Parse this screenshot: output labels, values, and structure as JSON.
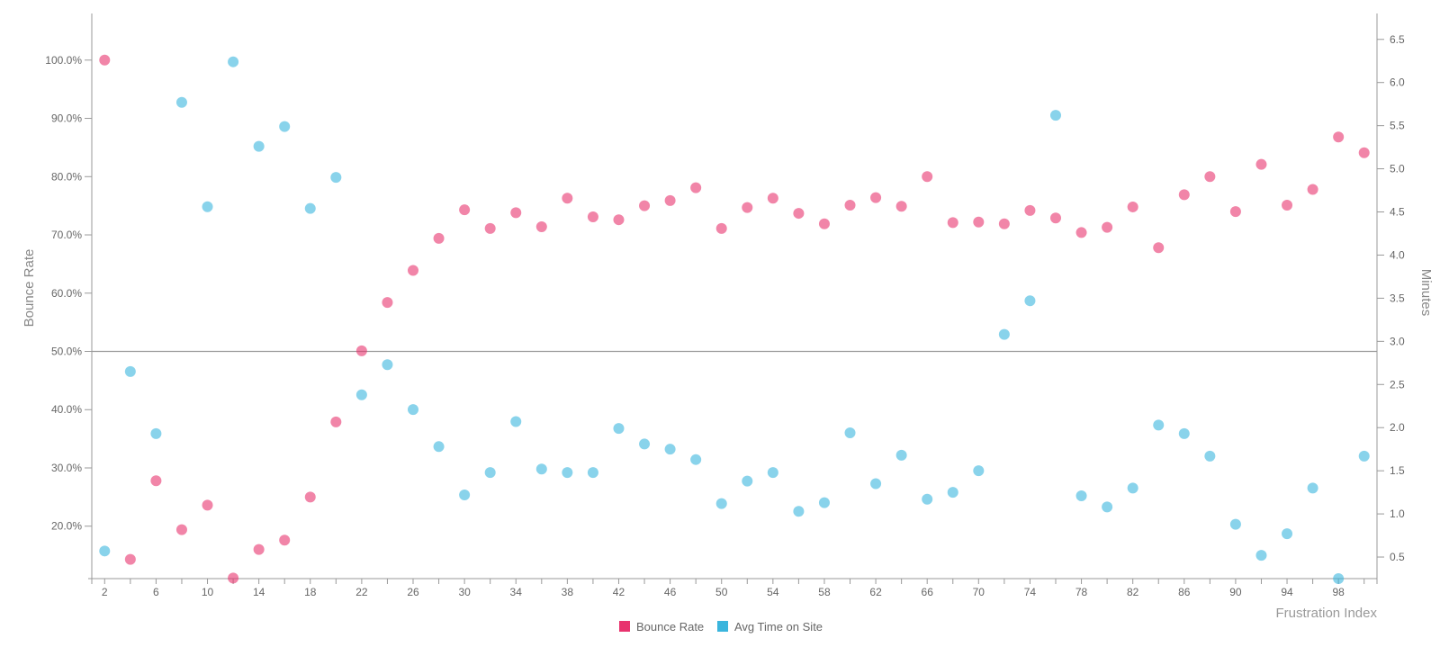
{
  "chart_data": {
    "type": "scatter",
    "xlabel": "Frustration Index",
    "y_left_label": "Bounce Rate",
    "y_right_label": "Minutes",
    "x_ticks": [
      2,
      6,
      10,
      14,
      18,
      22,
      26,
      30,
      34,
      38,
      42,
      46,
      50,
      54,
      58,
      62,
      66,
      70,
      74,
      78,
      82,
      86,
      90,
      94,
      98
    ],
    "x_range": [
      1,
      101
    ],
    "y_left_range": [
      11,
      108
    ],
    "y_left_ticks": [
      20,
      30,
      40,
      50,
      60,
      70,
      80,
      90,
      100
    ],
    "y_left_tick_labels": [
      "20.0%",
      "30.0%",
      "40.0%",
      "50.0%",
      "60.0%",
      "70.0%",
      "80.0%",
      "90.0%",
      "100.0%"
    ],
    "y_right_range": [
      0.25,
      6.8
    ],
    "y_right_ticks": [
      0.5,
      1.0,
      1.5,
      2.0,
      2.5,
      3.0,
      3.5,
      4.0,
      4.5,
      5.0,
      5.5,
      6.0,
      6.5
    ],
    "y_right_tick_labels": [
      "0.5",
      "1.0",
      "1.5",
      "2.0",
      "2.5",
      "3.0",
      "3.5",
      "4.0",
      "4.5",
      "5.0",
      "5.5",
      "6.0",
      "6.5"
    ],
    "reference_line": 50,
    "series": [
      {
        "name": "Bounce Rate",
        "color": "#e8336e",
        "axis": "left",
        "x": [
          2,
          4,
          6,
          8,
          10,
          12,
          14,
          16,
          18,
          20,
          22,
          24,
          26,
          28,
          30,
          32,
          34,
          36,
          38,
          40,
          42,
          44,
          46,
          48,
          50,
          52,
          54,
          56,
          58,
          60,
          62,
          64,
          66,
          68,
          70,
          72,
          74,
          76,
          78,
          80,
          82,
          84,
          86,
          88,
          90,
          92,
          94,
          96,
          98,
          100
        ],
        "y": [
          100.0,
          14.3,
          27.8,
          19.4,
          23.6,
          11.1,
          16.0,
          17.6,
          25.0,
          37.9,
          50.1,
          58.4,
          63.9,
          69.4,
          74.3,
          71.1,
          73.8,
          71.4,
          76.3,
          73.1,
          72.6,
          75.0,
          75.9,
          78.1,
          71.1,
          74.7,
          76.3,
          73.7,
          71.9,
          75.1,
          76.4,
          74.9,
          80.0,
          72.1,
          72.2,
          71.9,
          74.2,
          72.9,
          70.4,
          71.3,
          74.8,
          67.8,
          76.9,
          80.0,
          74.0,
          82.1,
          75.1,
          77.8,
          86.8,
          84.1
        ]
      },
      {
        "name": "Avg Time on Site",
        "color": "#3ab5dd",
        "axis": "right",
        "x": [
          2,
          4,
          6,
          8,
          10,
          12,
          14,
          16,
          18,
          20,
          22,
          24,
          26,
          28,
          30,
          32,
          34,
          36,
          38,
          40,
          42,
          44,
          46,
          48,
          50,
          52,
          54,
          56,
          58,
          60,
          62,
          64,
          66,
          68,
          70,
          72,
          74,
          76,
          78,
          80,
          82,
          84,
          86,
          88,
          90,
          92,
          94,
          96,
          98,
          100
        ],
        "y": [
          0.57,
          2.65,
          1.93,
          5.77,
          4.56,
          6.24,
          5.26,
          5.49,
          4.54,
          4.9,
          2.38,
          2.73,
          2.21,
          1.78,
          1.22,
          1.48,
          2.07,
          1.52,
          1.48,
          1.48,
          1.99,
          1.81,
          1.75,
          1.63,
          1.12,
          1.38,
          1.48,
          1.03,
          1.13,
          1.94,
          1.35,
          1.68,
          1.17,
          1.25,
          1.5,
          3.08,
          3.47,
          5.62,
          1.21,
          1.08,
          1.3,
          2.03,
          1.93,
          1.67,
          0.88,
          0.52,
          0.77,
          1.3,
          0.25,
          1.67
        ]
      }
    ],
    "legend": [
      "Bounce Rate",
      "Avg Time on Site"
    ]
  }
}
